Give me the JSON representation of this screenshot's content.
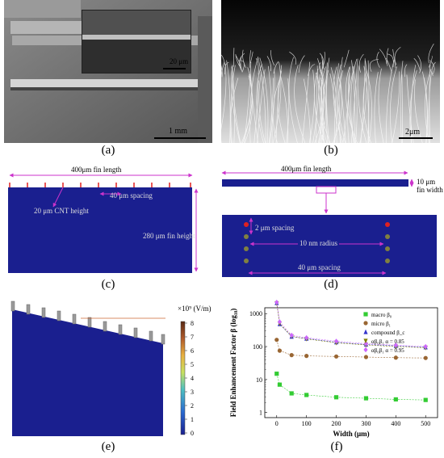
{
  "panels": {
    "a": {
      "caption": "(a)",
      "scale_main": "1 mm",
      "scale_inset": "20 μm"
    },
    "b": {
      "caption": "(b)",
      "scale": "2μm"
    },
    "c": {
      "caption": "(c)",
      "fin_length": "400μm fin length",
      "spacing": "40 μm spacing",
      "cnt_height": "20 μm CNT height",
      "fin_height": "280 μm fin height"
    },
    "d": {
      "caption": "(d)",
      "fin_length": "400μm fin length",
      "fin_width_line1": "10 μm",
      "fin_width_line2": "fin width",
      "spacing_small": "2 μm spacing",
      "radius": "10 nm radius",
      "spacing_large": "40 μm spacing"
    },
    "e": {
      "caption": "(e)",
      "colorbar_unit": "×10⁹ (V/m)",
      "colorbar_ticks": [
        "8",
        "7",
        "6",
        "5",
        "4",
        "3",
        "2",
        "1",
        "0"
      ]
    },
    "f": {
      "caption": "(f)"
    }
  },
  "colors": {
    "sim_blue": "#1a1f8f",
    "arrow_magenta": "#cc33cc",
    "red_tick": "#e02020"
  },
  "chart_data": {
    "type": "scatter",
    "xlabel": "Width (μm)",
    "ylabel": "Field Enhancement Factor β (log₁₀)",
    "x_ticks": [
      0,
      100,
      200,
      300,
      400,
      500
    ],
    "y_ticks": [
      "1",
      "10",
      "100",
      "1000"
    ],
    "yscale": "log",
    "xlim": [
      -40,
      540
    ],
    "ylim": [
      0.7,
      1500
    ],
    "legend_position": "top-right",
    "x": [
      0,
      10,
      50,
      100,
      200,
      300,
      400,
      500
    ],
    "series": [
      {
        "name": "macro β₀",
        "color": "#33cc33",
        "marker": "square",
        "values": [
          15,
          7,
          3.8,
          3.4,
          2.9,
          2.7,
          2.5,
          2.4
        ]
      },
      {
        "name": "micro β₁",
        "color": "#996633",
        "marker": "circle",
        "values": [
          160,
          75,
          55,
          52,
          50,
          48,
          46,
          45
        ]
      },
      {
        "name": "compound β_c",
        "color": "#3333cc",
        "marker": "triangle",
        "values": [
          2100,
          480,
          200,
          175,
          135,
          115,
          105,
          95
        ]
      },
      {
        "name": "αβ₀β₁  α = 0.85",
        "color": "#808000",
        "marker": "triangle-down",
        "values": [
          2050,
          500,
          205,
          170,
          130,
          112,
          100,
          92
        ]
      },
      {
        "name": "αβ₀β₁  α = 0.95",
        "color": "#cc66ff",
        "marker": "diamond",
        "values": [
          2200,
          560,
          220,
          185,
          145,
          122,
          110,
          100
        ]
      }
    ]
  }
}
